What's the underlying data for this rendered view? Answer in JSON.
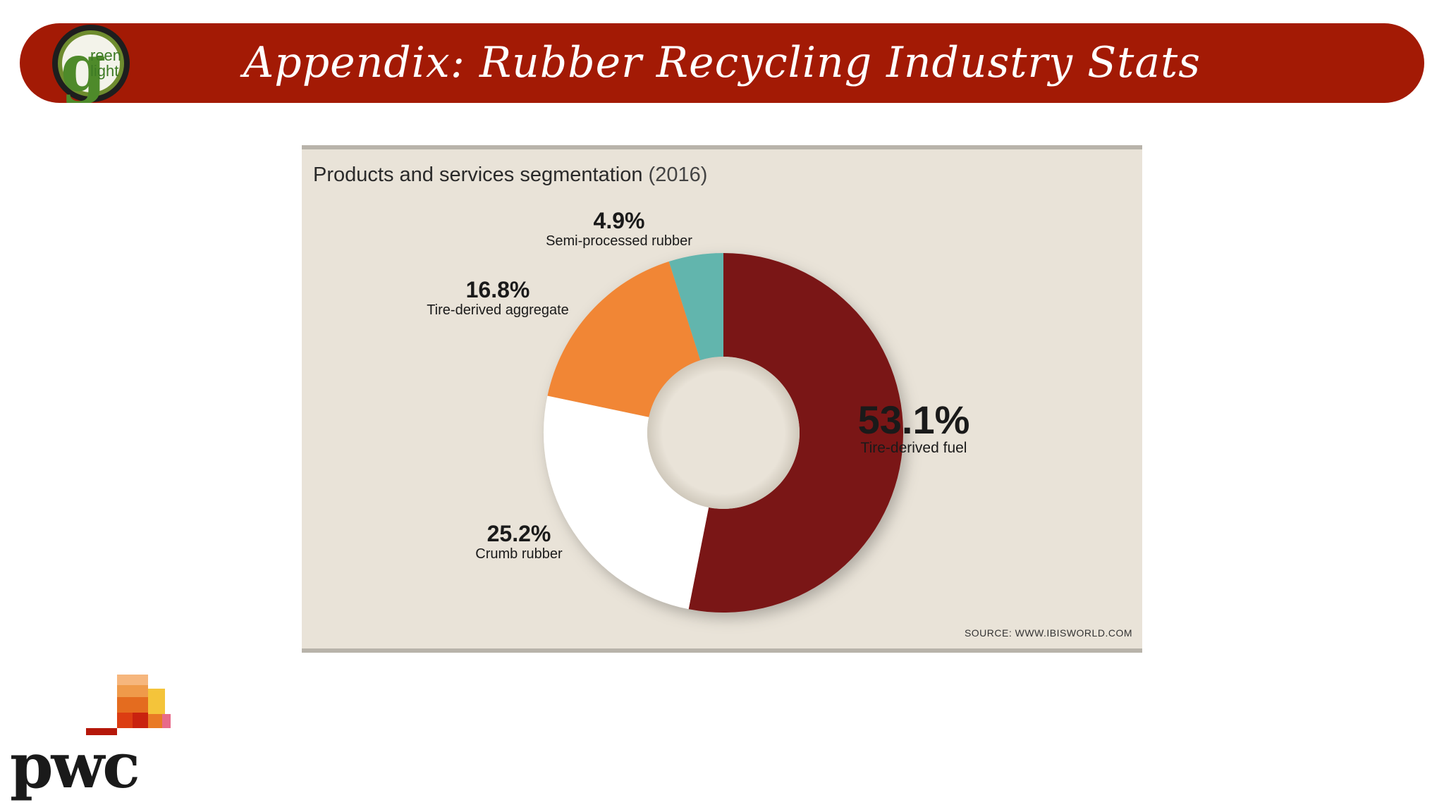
{
  "header": {
    "title": "Appendix: Rubber Recycling Industry Stats",
    "bar_color": "#a31a05"
  },
  "logo": {
    "main_letter": "g",
    "line1": "reen",
    "line2": "light"
  },
  "chart_data": {
    "type": "pie",
    "variant": "donut",
    "title": "Products and services segmentation",
    "title_year": "(2016)",
    "slices": [
      {
        "label": "Tire-derived fuel",
        "value": 53.1,
        "display": "53.1%",
        "color": "#7a1416"
      },
      {
        "label": "Crumb rubber",
        "value": 25.2,
        "display": "25.2%",
        "color": "#ffffff"
      },
      {
        "label": "Tire-derived aggregate",
        "value": 16.8,
        "display": "16.8%",
        "color": "#f18636"
      },
      {
        "label": "Semi-processed rubber",
        "value": 4.9,
        "display": "4.9%",
        "color": "#62b5ad"
      }
    ],
    "source": "SOURCE: WWW.IBISWORLD.COM"
  },
  "footer_logo": {
    "text": "pwc"
  }
}
